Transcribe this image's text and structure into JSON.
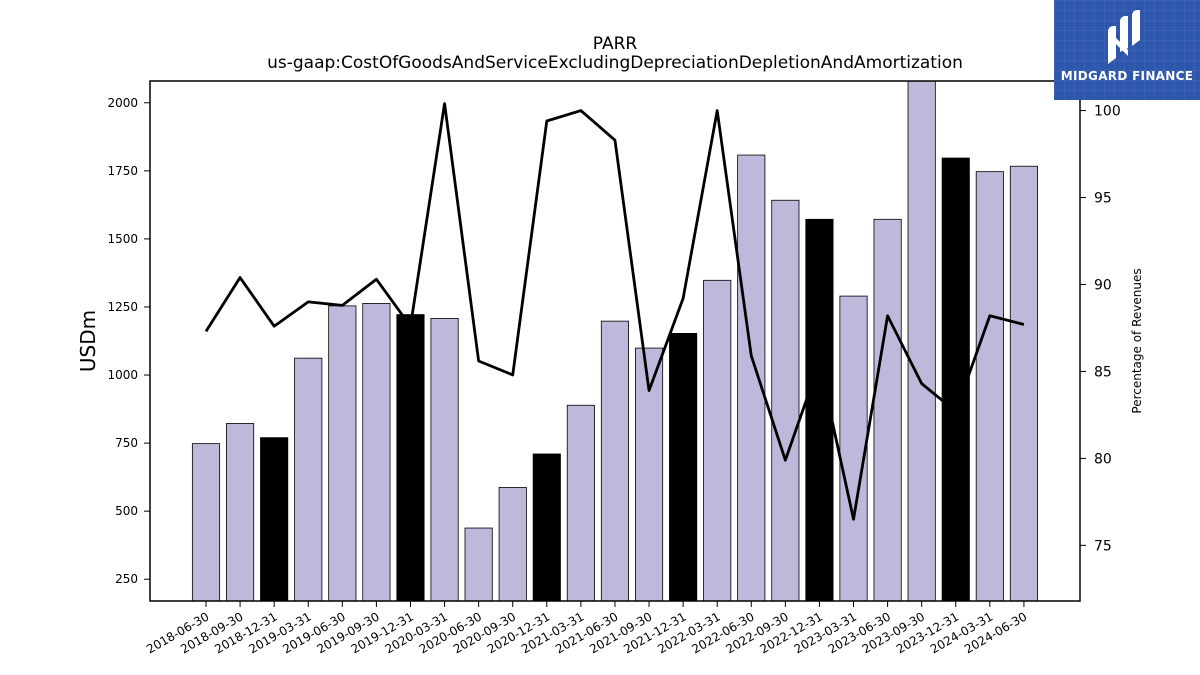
{
  "chart_data": {
    "type": "bar",
    "title": "PARR",
    "subtitle": "us-gaap:CostOfGoodsAndServiceExcludingDepreciationDepletionAndAmortization",
    "ylabel": "USDm",
    "y2label": "Percentage of Revenues",
    "ylim": [
      170,
      2080
    ],
    "y2lim": [
      71.8,
      101.7
    ],
    "yticks": [
      250,
      500,
      750,
      1000,
      1250,
      1500,
      1750,
      2000
    ],
    "y2ticks": [
      75,
      80,
      85,
      90,
      95,
      100
    ],
    "categories": [
      "2018-06-30",
      "2018-09-30",
      "2018-12-31",
      "2019-03-31",
      "2019-06-30",
      "2019-09-30",
      "2019-12-31",
      "2020-03-31",
      "2020-06-30",
      "2020-09-30",
      "2020-12-31",
      "2021-03-31",
      "2021-06-30",
      "2021-09-30",
      "2021-12-31",
      "2022-03-31",
      "2022-06-30",
      "2022-09-30",
      "2022-12-31",
      "2023-03-31",
      "2023-06-30",
      "2023-09-30",
      "2023-12-31",
      "2024-03-31",
      "2024-06-30"
    ],
    "series": [
      {
        "type": "bar",
        "axis": "left",
        "values": [
          748,
          822,
          770,
          1062,
          1254,
          1263,
          1222,
          1208,
          438,
          587,
          710,
          889,
          1198,
          1099,
          1153,
          1348,
          1808,
          1642,
          1572,
          1290,
          1572,
          2090,
          1797,
          1747,
          1767
        ],
        "colors": [
          "#bcb9da",
          "#bcb9da",
          "#000000",
          "#bcb9da",
          "#bcb9da",
          "#bcb9da",
          "#000000",
          "#bcb9da",
          "#bcb9da",
          "#bcb9da",
          "#000000",
          "#bcb9da",
          "#bcb9da",
          "#bcb9da",
          "#000000",
          "#bcb9da",
          "#bcb9da",
          "#bcb9da",
          "#000000",
          "#bcb9da",
          "#bcb9da",
          "#bcb9da",
          "#000000",
          "#bcb9da",
          "#bcb9da"
        ]
      },
      {
        "type": "line",
        "axis": "right",
        "color": "#000000",
        "values": [
          87.3,
          90.4,
          87.6,
          89.0,
          88.8,
          90.3,
          87.6,
          100.4,
          85.6,
          84.8,
          99.4,
          100.0,
          98.3,
          83.9,
          89.2,
          100.0,
          85.9,
          79.9,
          85.5,
          76.5,
          88.2,
          84.3,
          82.7,
          88.2,
          87.7
        ]
      }
    ],
    "bar_color": "#bcb9da",
    "highlight_color": "#000000",
    "grid": false,
    "legend": "none"
  },
  "logo": {
    "text": "MIDGARD FINANCE",
    "background": "#2d56ad"
  }
}
